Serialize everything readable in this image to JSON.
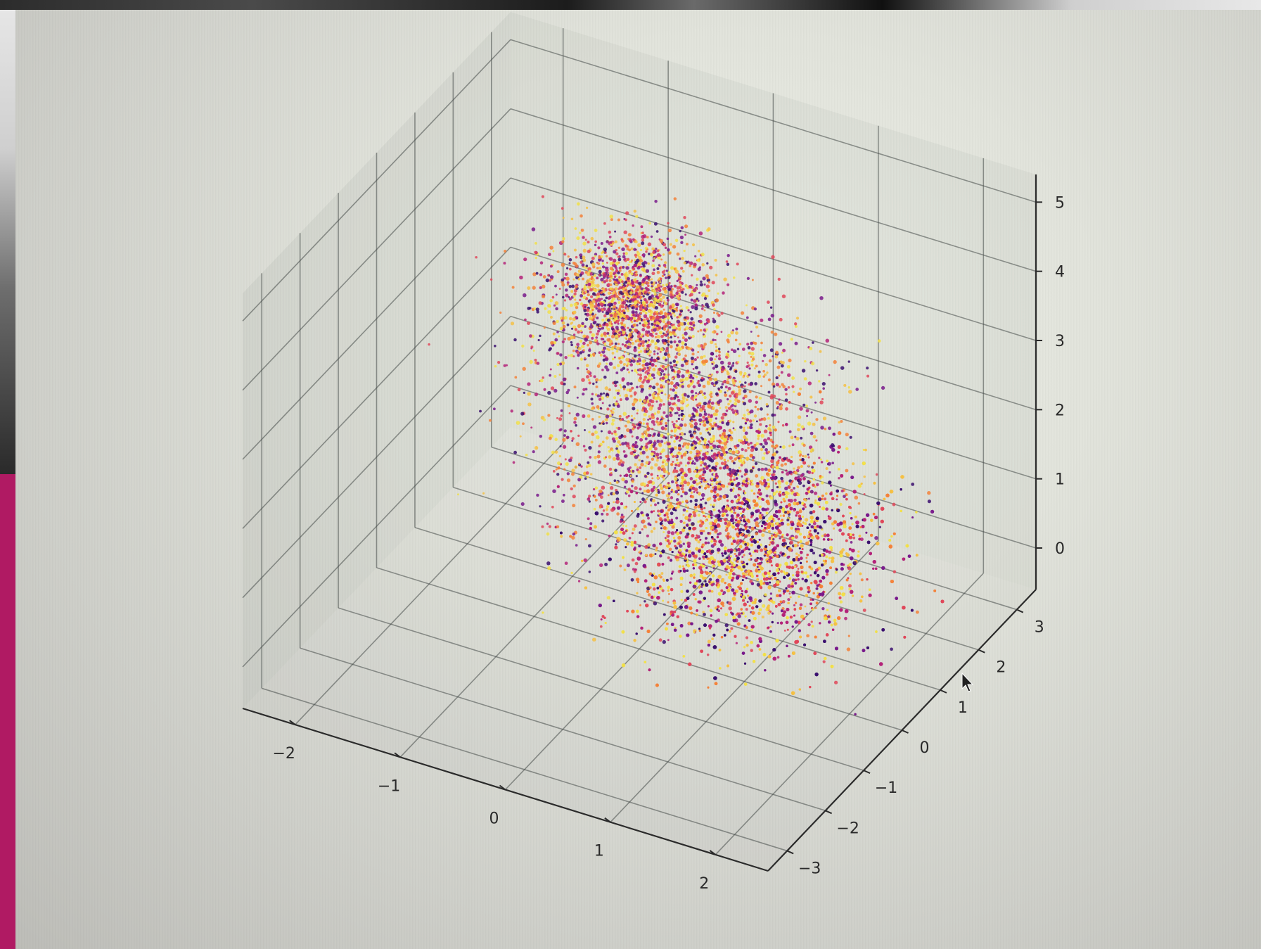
{
  "chart_data": {
    "type": "scatter3d",
    "title": "",
    "xlabel": "",
    "ylabel": "",
    "zlabel": "",
    "x_ticks": [
      "−2",
      "−1",
      "0",
      "1",
      "2"
    ],
    "y_ticks": [
      "−3",
      "−2",
      "−1",
      "0",
      "1",
      "2",
      "3"
    ],
    "z_ticks": [
      "0",
      "1",
      "2",
      "3",
      "4",
      "5"
    ],
    "xlim": [
      -2.5,
      2.5
    ],
    "ylim": [
      -3.5,
      3.5
    ],
    "zlim": [
      -0.6,
      5.4
    ],
    "grid": true,
    "colormap": [
      "#3b0f70",
      "#7a1a8c",
      "#b5237a",
      "#e2485a",
      "#f6833a",
      "#f7c245",
      "#f3e24a"
    ],
    "clusters": [
      {
        "center_x": -0.7,
        "center_y": 1.6,
        "center_z": 3.2,
        "spread_x": 0.35,
        "spread_y": 0.5,
        "spread_z": 0.35,
        "points": 1600
      },
      {
        "center_x": 0.9,
        "center_y": 0.4,
        "center_z": 1.1,
        "spread_x": 0.55,
        "spread_y": 0.75,
        "spread_z": 0.55,
        "points": 4200
      },
      {
        "center_x": 0.1,
        "center_y": 0.9,
        "center_z": 2.1,
        "spread_x": 0.6,
        "spread_y": 0.8,
        "spread_z": 0.7,
        "points": 2200
      }
    ]
  }
}
